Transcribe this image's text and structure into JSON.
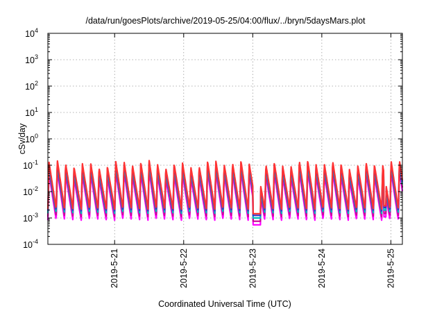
{
  "chart_data": {
    "type": "line",
    "title": "/data/run/goesPlots/archive/2019-05-25/04:00/flux/../bryn/5daysMars.plot",
    "xlabel": "Coordinated Universal Time (UTC)",
    "ylabel": "cSv/day",
    "yscale": "log",
    "ylim": [
      0.0001,
      10000
    ],
    "y_ticks": [
      {
        "value": 0.0001,
        "base": "10",
        "exp": "-4"
      },
      {
        "value": 0.001,
        "base": "10",
        "exp": "-3"
      },
      {
        "value": 0.01,
        "base": "10",
        "exp": "-2"
      },
      {
        "value": 0.1,
        "base": "10",
        "exp": "-1"
      },
      {
        "value": 1,
        "base": "10",
        "exp": "0"
      },
      {
        "value": 10,
        "base": "10",
        "exp": "1"
      },
      {
        "value": 100,
        "base": "10",
        "exp": "2"
      },
      {
        "value": 1000,
        "base": "10",
        "exp": "3"
      },
      {
        "value": 10000,
        "base": "10",
        "exp": "4"
      }
    ],
    "xlim": [
      "2019-05-20 00:48",
      "2019-05-25 04:00"
    ],
    "x_ticks": [
      "2019-5-21",
      "2019-5-22",
      "2019-5-23",
      "2019-5-24",
      "2019-5-25"
    ],
    "grid": true,
    "legend": "none",
    "orbit_cycle_hours": 2.9,
    "envelope": {
      "peak_value": 0.08,
      "trough_value": 0.0015
    },
    "data_gaps": [
      {
        "start": "2019-05-23 00:05",
        "end": "2019-05-23 02:45",
        "level": 0.001
      },
      {
        "start": "2019-05-24 21:30",
        "end": "2019-05-24 22:20",
        "level": 0.002
      }
    ],
    "series": [
      {
        "color": "#ff00ff",
        "scale": 0.55
      },
      {
        "color": "#cc0099",
        "scale": 0.75
      },
      {
        "color": "#00bbbb",
        "scale": 1.0
      },
      {
        "color": "#3333cc",
        "scale": 1.25
      },
      {
        "color": "#ff3333",
        "scale": 1.45
      }
    ]
  }
}
